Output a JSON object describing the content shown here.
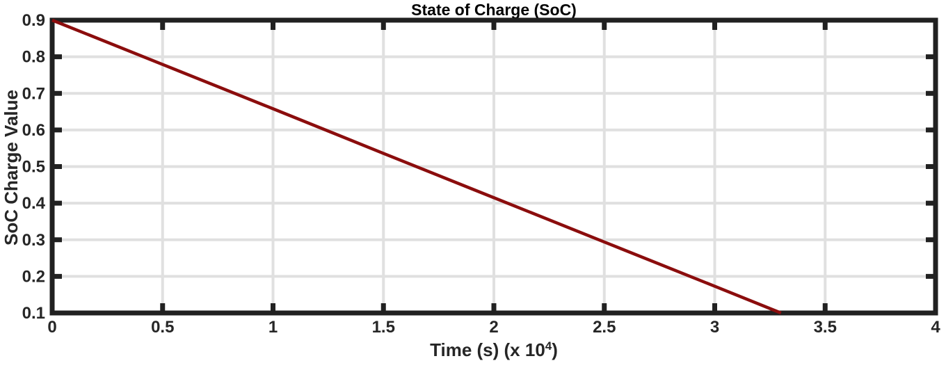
{
  "chart_data": {
    "type": "line",
    "title": "State of Charge (SoC)",
    "xlabel": "Time (s) (x 10^4)",
    "xlabel_parts": {
      "main": "Time (s) (x 10",
      "sup": "4",
      "end": ")"
    },
    "ylabel": "SoC Charge Value",
    "xlim": [
      0,
      4
    ],
    "ylim": [
      0.1,
      0.9
    ],
    "xtick_labels": [
      "0",
      "0.5",
      "1",
      "1.5",
      "2",
      "2.5",
      "3",
      "3.5",
      "4"
    ],
    "ytick_labels": [
      "0.1",
      "0.2",
      "0.3",
      "0.4",
      "0.5",
      "0.6",
      "0.7",
      "0.8",
      "0.9"
    ],
    "grid": true,
    "legend": "none",
    "series": [
      {
        "name": "SoC",
        "color": "#8B0D0D",
        "x": [
          0,
          0.5,
          1,
          1.5,
          2,
          2.5,
          3,
          3.3
        ],
        "y": [
          0.9,
          0.779,
          0.658,
          0.536,
          0.415,
          0.294,
          0.173,
          0.1
        ]
      }
    ],
    "colors": {
      "line": "#8B0D0D",
      "grid": "#E0E0E0",
      "axis": "#212121",
      "tick_text": "#262626",
      "title_text": "#000000",
      "background": "#FFFFFF"
    }
  }
}
